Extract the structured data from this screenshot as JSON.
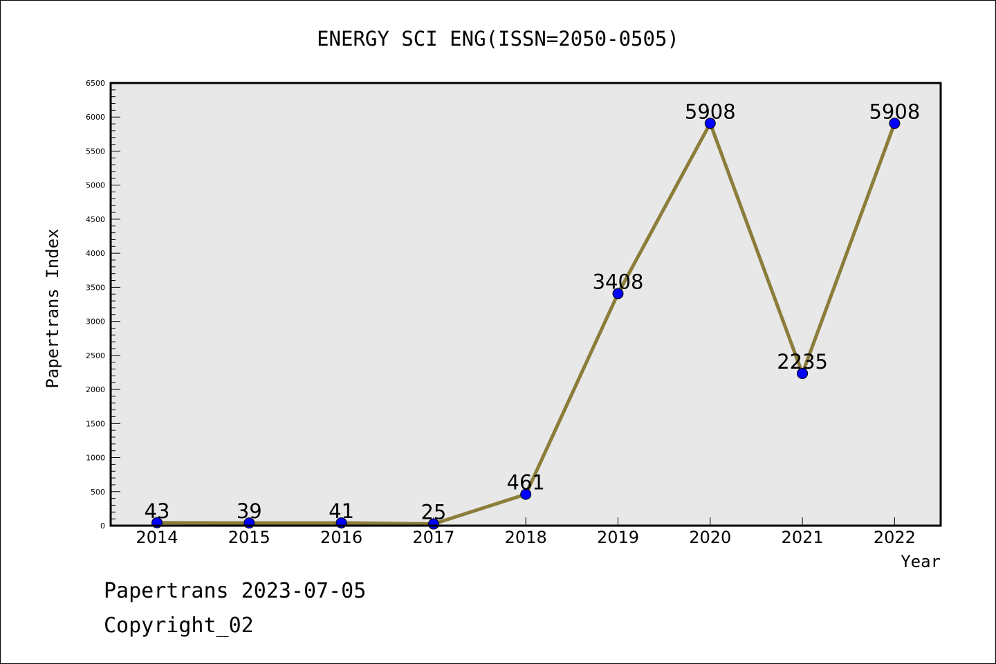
{
  "chart_data": {
    "type": "line",
    "title": "ENERGY SCI ENG(ISSN=2050-0505)",
    "xlabel": "Year",
    "ylabel": "Papertrans Index",
    "categories": [
      "2014",
      "2015",
      "2016",
      "2017",
      "2018",
      "2019",
      "2020",
      "2021",
      "2022"
    ],
    "series": [
      {
        "values": [
          43,
          39,
          41,
          25,
          461,
          3408,
          5908,
          2235,
          5908
        ],
        "labels": [
          "43",
          "39",
          "41",
          "25",
          "461",
          "3408",
          "5908",
          "2235",
          "5908"
        ],
        "line_color": "#8b7d3a",
        "marker_color": "#0000ff"
      }
    ],
    "ylim": [
      0,
      6500
    ],
    "yticks": [
      "0",
      "500",
      "1000",
      "1500",
      "2000",
      "2500",
      "3000",
      "3500",
      "4000",
      "4500",
      "5000",
      "5500",
      "6000",
      "6500"
    ],
    "grid": false,
    "plot_background": "#e8e8e8"
  },
  "footer": {
    "date_line": "Papertrans 2023-07-05",
    "copyright_line": "Copyright_02"
  }
}
